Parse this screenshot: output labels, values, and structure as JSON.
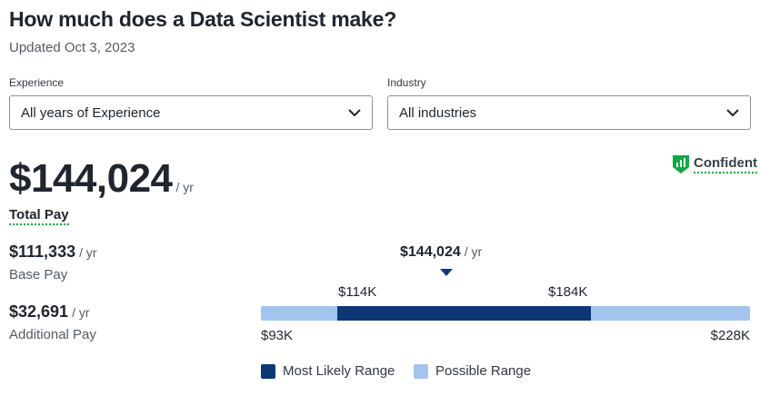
{
  "header": {
    "title": "How much does a Data Scientist make?",
    "updated": "Updated Oct 3, 2023"
  },
  "filters": {
    "experience": {
      "label": "Experience",
      "value": "All years of Experience",
      "icon": "chevron-down-icon"
    },
    "industry": {
      "label": "Industry",
      "value": "All industries",
      "icon": "chevron-down-icon"
    }
  },
  "confidence": {
    "label": "Confident",
    "icon": "shield-chart-icon",
    "color": "#0caa41"
  },
  "total_pay": {
    "amount": "$144,024",
    "unit": "/ yr",
    "label": "Total Pay"
  },
  "base_pay": {
    "amount": "$111,333",
    "unit": "/ yr",
    "label": "Base Pay"
  },
  "additional_pay": {
    "amount": "$32,691",
    "unit": "/ yr",
    "label": "Additional Pay"
  },
  "range": {
    "median": {
      "amount": "$144,024",
      "unit": "/ yr",
      "value": 144024
    },
    "min": {
      "label": "$93K",
      "value": 93000
    },
    "max": {
      "label": "$228K",
      "value": 228000
    },
    "likely_low": {
      "label": "$114K",
      "value": 114000
    },
    "likely_high": {
      "label": "$184K",
      "value": 184000
    },
    "colors": {
      "likely": "#0d3875",
      "possible": "#a3c4ee"
    }
  },
  "legend": {
    "likely": "Most Likely Range",
    "possible": "Possible Range"
  }
}
